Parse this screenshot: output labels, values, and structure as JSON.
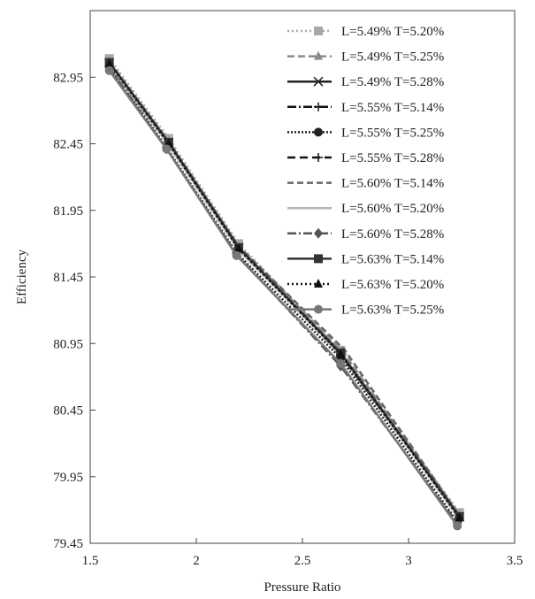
{
  "chart_data": {
    "type": "line",
    "title": "",
    "xlabel": "Pressure Ratio",
    "ylabel": "Efficiency",
    "xlim": [
      1.5,
      3.5
    ],
    "ylim": [
      79.45,
      83.45
    ],
    "xticks": [
      "1.5",
      "2",
      "2.5",
      "3",
      "3.5"
    ],
    "yticks": [
      "79.45",
      "79.95",
      "80.45",
      "80.95",
      "81.45",
      "81.95",
      "82.45",
      "82.95"
    ],
    "grid": false,
    "legend_position": "top-right",
    "series": [
      {
        "name": "L=5.49% T=5.20%",
        "color": "#a8a8a8",
        "dash": "2,3",
        "marker": "square",
        "x": [
          1.59,
          1.87,
          2.2,
          2.68,
          3.24
        ],
        "y": [
          83.09,
          82.49,
          81.7,
          80.9,
          79.68
        ]
      },
      {
        "name": "L=5.49% T=5.25%",
        "color": "#8a8a8a",
        "dash": "8,4",
        "marker": "triangle",
        "x": [
          1.59,
          1.87,
          2.2,
          2.69,
          3.24
        ],
        "y": [
          83.07,
          82.47,
          81.68,
          80.89,
          79.66
        ]
      },
      {
        "name": "L=5.49% T=5.28%",
        "color": "#222222",
        "dash": "",
        "marker": "x",
        "x": [
          1.59,
          1.87,
          2.2,
          2.68,
          3.24
        ],
        "y": [
          83.06,
          82.46,
          81.67,
          80.88,
          79.65
        ]
      },
      {
        "name": "L=5.55% T=5.14%",
        "color": "#111111",
        "dash": "10,3,2,3",
        "marker": "plus",
        "x": [
          1.59,
          1.87,
          2.2,
          2.68,
          3.24
        ],
        "y": [
          83.05,
          82.45,
          81.66,
          80.87,
          79.64
        ]
      },
      {
        "name": "L=5.55% T=5.25%",
        "color": "#222222",
        "dash": "2,2",
        "marker": "circle",
        "x": [
          1.59,
          1.86,
          2.19,
          2.68,
          3.23
        ],
        "y": [
          83.03,
          82.42,
          81.63,
          80.84,
          79.61
        ]
      },
      {
        "name": "L=5.55% T=5.28%",
        "color": "#111111",
        "dash": "9,5",
        "marker": "plus",
        "x": [
          1.59,
          1.87,
          2.2,
          2.68,
          3.24
        ],
        "y": [
          83.05,
          82.45,
          81.66,
          80.87,
          79.64
        ]
      },
      {
        "name": "L=5.60% T=5.14%",
        "color": "#666666",
        "dash": "7,4",
        "marker": "none",
        "x": [
          1.59,
          1.87,
          2.2,
          2.7,
          3.24
        ],
        "y": [
          83.06,
          82.46,
          81.68,
          80.9,
          79.66
        ]
      },
      {
        "name": "L=5.60% T=5.20%",
        "color": "#b4b4b4",
        "dash": "",
        "marker": "none",
        "x": [
          1.59,
          1.87,
          2.2,
          2.69,
          3.24
        ],
        "y": [
          83.04,
          82.44,
          81.65,
          80.86,
          79.63
        ]
      },
      {
        "name": "L=5.60% T=5.28%",
        "color": "#555555",
        "dash": "10,3,2,3",
        "marker": "diamond",
        "x": [
          1.59,
          1.86,
          2.19,
          2.68,
          3.23
        ],
        "y": [
          83.02,
          82.41,
          81.62,
          80.78,
          79.6
        ]
      },
      {
        "name": "L=5.63% T=5.14%",
        "color": "#333333",
        "dash": "",
        "marker": "square",
        "x": [
          1.59,
          1.87,
          2.2,
          2.68,
          3.24
        ],
        "y": [
          83.06,
          82.46,
          81.67,
          80.88,
          79.65
        ]
      },
      {
        "name": "L=5.63% T=5.20%",
        "color": "#111111",
        "dash": "2,3",
        "marker": "triangle",
        "x": [
          1.59,
          1.87,
          2.2,
          2.68,
          3.24
        ],
        "y": [
          83.05,
          82.45,
          81.66,
          80.87,
          79.64
        ]
      },
      {
        "name": "L=5.63% T=5.25%",
        "color": "#777777",
        "dash": "",
        "marker": "circle",
        "x": [
          1.59,
          1.86,
          2.19,
          2.68,
          3.23
        ],
        "y": [
          83.0,
          82.41,
          81.61,
          80.8,
          79.58
        ]
      }
    ]
  }
}
